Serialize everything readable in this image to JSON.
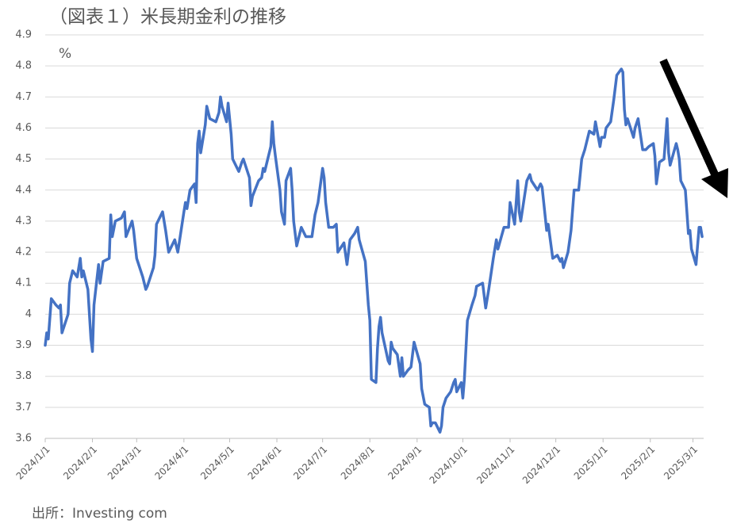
{
  "chart_data": {
    "type": "line",
    "title": "（図表１）米長期金利の推移",
    "y_unit": "%",
    "source": "出所：Investing com",
    "color": "#4472c4",
    "grid": true,
    "ylim": [
      3.6,
      4.9
    ],
    "yticks": [
      3.6,
      3.7,
      3.8,
      3.9,
      4,
      4.1,
      4.2,
      4.3,
      4.4,
      4.5,
      4.6,
      4.7,
      4.8,
      4.9
    ],
    "xlim": [
      "2024/1/1",
      "2025/3/8"
    ],
    "xticks": [
      "2024/1/1",
      "2024/2/1",
      "2024/3/1",
      "2024/4/1",
      "2024/5/1",
      "2024/6/1",
      "2024/7/1",
      "2024/8/1",
      "2024/9/1",
      "2024/10/1",
      "2024/11/1",
      "2024/12/1",
      "2025/1/1",
      "2025/2/1",
      "2025/3/1"
    ],
    "x": [
      "2024/1/1",
      "2024/1/2",
      "2024/1/3",
      "2024/1/5",
      "2024/1/8",
      "2024/1/10",
      "2024/1/11",
      "2024/1/12",
      "2024/1/16",
      "2024/1/17",
      "2024/1/19",
      "2024/1/22",
      "2024/1/24",
      "2024/1/25",
      "2024/1/26",
      "2024/1/29",
      "2024/1/31",
      "2024/2/1",
      "2024/2/2",
      "2024/2/5",
      "2024/2/6",
      "2024/2/8",
      "2024/2/12",
      "2024/2/13",
      "2024/2/14",
      "2024/2/16",
      "2024/2/20",
      "2024/2/22",
      "2024/2/23",
      "2024/2/27",
      "2024/2/28",
      "2024/3/1",
      "2024/3/5",
      "2024/3/7",
      "2024/3/8",
      "2024/3/12",
      "2024/3/13",
      "2024/3/14",
      "2024/3/18",
      "2024/3/20",
      "2024/3/22",
      "2024/3/26",
      "2024/3/28",
      "2024/4/1",
      "2024/4/2",
      "2024/4/3",
      "2024/4/5",
      "2024/4/8",
      "2024/4/9",
      "2024/4/10",
      "2024/4/11",
      "2024/4/12",
      "2024/4/15",
      "2024/4/16",
      "2024/4/18",
      "2024/4/22",
      "2024/4/24",
      "2024/4/25",
      "2024/4/26",
      "2024/4/29",
      "2024/4/30",
      "2024/5/1",
      "2024/5/2",
      "2024/5/3",
      "2024/5/7",
      "2024/5/9",
      "2024/5/10",
      "2024/5/14",
      "2024/5/15",
      "2024/5/16",
      "2024/5/20",
      "2024/5/22",
      "2024/5/23",
      "2024/5/24",
      "2024/5/28",
      "2024/5/29",
      "2024/5/30",
      "2024/5/31",
      "2024/6/3",
      "2024/6/4",
      "2024/6/6",
      "2024/6/7",
      "2024/6/10",
      "2024/6/11",
      "2024/6/12",
      "2024/6/14",
      "2024/6/17",
      "2024/6/20",
      "2024/6/24",
      "2024/6/26",
      "2024/6/28",
      "2024/7/1",
      "2024/7/2",
      "2024/7/3",
      "2024/7/5",
      "2024/7/8",
      "2024/7/10",
      "2024/7/11",
      "2024/7/15",
      "2024/7/17",
      "2024/7/19",
      "2024/7/22",
      "2024/7/24",
      "2024/7/25",
      "2024/7/29",
      "2024/7/31",
      "2024/8/1",
      "2024/8/2",
      "2024/8/5",
      "2024/8/6",
      "2024/8/7",
      "2024/8/8",
      "2024/8/9",
      "2024/8/13",
      "2024/8/14",
      "2024/8/15",
      "2024/8/16",
      "2024/8/19",
      "2024/8/21",
      "2024/8/22",
      "2024/8/23",
      "2024/8/26",
      "2024/8/28",
      "2024/8/30",
      "2024/9/3",
      "2024/9/4",
      "2024/9/6",
      "2024/9/9",
      "2024/9/10",
      "2024/9/11",
      "2024/9/13",
      "2024/9/16",
      "2024/9/17",
      "2024/9/18",
      "2024/9/20",
      "2024/9/23",
      "2024/9/25",
      "2024/9/26",
      "2024/9/27",
      "2024/9/30",
      "2024/10/1",
      "2024/10/2",
      "2024/10/4",
      "2024/10/7",
      "2024/10/9",
      "2024/10/10",
      "2024/10/14",
      "2024/10/16",
      "2024/10/18",
      "2024/10/21",
      "2024/10/23",
      "2024/10/24",
      "2024/10/28",
      "2024/10/31",
      "2024/11/1",
      "2024/11/4",
      "2024/11/6",
      "2024/11/7",
      "2024/11/8",
      "2024/11/12",
      "2024/11/14",
      "2024/11/15",
      "2024/11/19",
      "2024/11/21",
      "2024/11/22",
      "2024/11/25",
      "2024/11/26",
      "2024/11/29",
      "2024/12/2",
      "2024/12/4",
      "2024/12/5",
      "2024/12/6",
      "2024/12/9",
      "2024/12/11",
      "2024/12/13",
      "2024/12/16",
      "2024/12/18",
      "2024/12/20",
      "2024/12/23",
      "2024/12/26",
      "2024/12/27",
      "2024/12/30",
      "2024/12/31",
      "2025/1/2",
      "2025/1/3",
      "2025/1/6",
      "2025/1/8",
      "2025/1/10",
      "2025/1/13",
      "2025/1/14",
      "2025/1/15",
      "2025/1/16",
      "2025/1/17",
      "2025/1/21",
      "2025/1/22",
      "2025/1/24",
      "2025/1/27",
      "2025/1/29",
      "2025/1/31",
      "2025/2/3",
      "2025/2/4",
      "2025/2/5",
      "2025/2/7",
      "2025/2/10",
      "2025/2/12",
      "2025/2/13",
      "2025/2/14",
      "2025/2/18",
      "2025/2/19",
      "2025/2/20",
      "2025/2/21",
      "2025/2/24",
      "2025/2/26",
      "2025/2/27",
      "2025/2/28",
      "2025/3/3",
      "2025/3/4",
      "2025/3/5",
      "2025/3/6",
      "2025/3/7"
    ],
    "values": [
      3.9,
      3.94,
      3.92,
      4.05,
      4.03,
      4.02,
      4.03,
      3.94,
      4.0,
      4.1,
      4.14,
      4.12,
      4.18,
      4.12,
      4.14,
      4.08,
      3.92,
      3.88,
      4.03,
      4.16,
      4.1,
      4.17,
      4.18,
      4.32,
      4.25,
      4.3,
      4.31,
      4.33,
      4.25,
      4.3,
      4.27,
      4.18,
      4.12,
      4.08,
      4.09,
      4.15,
      4.19,
      4.29,
      4.33,
      4.27,
      4.2,
      4.24,
      4.2,
      4.33,
      4.36,
      4.34,
      4.4,
      4.42,
      4.36,
      4.55,
      4.59,
      4.52,
      4.61,
      4.67,
      4.63,
      4.62,
      4.65,
      4.7,
      4.67,
      4.62,
      4.68,
      4.63,
      4.58,
      4.5,
      4.46,
      4.49,
      4.5,
      4.44,
      4.35,
      4.38,
      4.43,
      4.44,
      4.47,
      4.46,
      4.54,
      4.62,
      4.55,
      4.51,
      4.4,
      4.33,
      4.29,
      4.43,
      4.47,
      4.4,
      4.3,
      4.22,
      4.28,
      4.25,
      4.25,
      4.32,
      4.36,
      4.47,
      4.44,
      4.36,
      4.28,
      4.28,
      4.29,
      4.2,
      4.23,
      4.16,
      4.24,
      4.26,
      4.28,
      4.24,
      4.17,
      4.03,
      3.98,
      3.79,
      3.78,
      3.89,
      3.96,
      3.99,
      3.94,
      3.85,
      3.84,
      3.91,
      3.89,
      3.87,
      3.8,
      3.86,
      3.8,
      3.82,
      3.83,
      3.91,
      3.84,
      3.76,
      3.71,
      3.7,
      3.64,
      3.65,
      3.65,
      3.62,
      3.64,
      3.7,
      3.73,
      3.75,
      3.78,
      3.79,
      3.75,
      3.78,
      3.73,
      3.79,
      3.98,
      4.03,
      4.06,
      4.09,
      4.1,
      4.02,
      4.08,
      4.18,
      4.24,
      4.21,
      4.28,
      4.28,
      4.36,
      4.29,
      4.43,
      4.33,
      4.3,
      4.43,
      4.45,
      4.43,
      4.4,
      4.42,
      4.41,
      4.27,
      4.29,
      4.18,
      4.19,
      4.17,
      4.18,
      4.15,
      4.2,
      4.27,
      4.4,
      4.4,
      4.5,
      4.53,
      4.59,
      4.58,
      4.62,
      4.54,
      4.57,
      4.57,
      4.6,
      4.62,
      4.69,
      4.77,
      4.79,
      4.78,
      4.66,
      4.61,
      4.63,
      4.57,
      4.6,
      4.63,
      4.53,
      4.53,
      4.54,
      4.55,
      4.51,
      4.42,
      4.49,
      4.5,
      4.63,
      4.52,
      4.48,
      4.55,
      4.53,
      4.5,
      4.43,
      4.4,
      4.26,
      4.27,
      4.21,
      4.16,
      4.22,
      4.28,
      4.28,
      4.25
    ]
  }
}
